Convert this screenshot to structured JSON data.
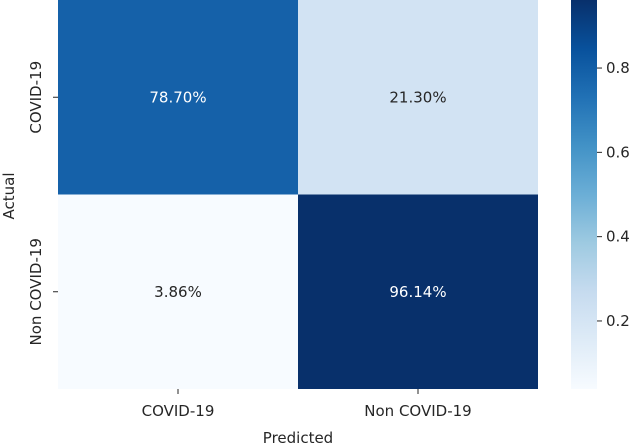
{
  "chart_data": {
    "type": "heatmap",
    "title": "",
    "xlabel": "Predicted",
    "ylabel": "Actual",
    "x_categories": [
      "COVID-19",
      "Non COVID-19"
    ],
    "y_categories": [
      "COVID-19",
      "Non COVID-19"
    ],
    "values": [
      [
        0.787,
        0.213
      ],
      [
        0.0386,
        0.9614
      ]
    ],
    "cell_labels": [
      [
        "78.70%",
        "21.30%"
      ],
      [
        "3.86%",
        "96.14%"
      ]
    ],
    "colormap": "Blues",
    "colorbar": {
      "range": [
        0.0386,
        0.9614
      ],
      "ticks": [
        0.2,
        0.4,
        0.6,
        0.8
      ],
      "tick_labels": [
        "0.2",
        "0.4",
        "0.6",
        "0.8"
      ]
    },
    "colors": {
      "text_dark": "#262626",
      "text_light": "#ffffff"
    },
    "grid": false,
    "legend": "colorbar-right"
  }
}
